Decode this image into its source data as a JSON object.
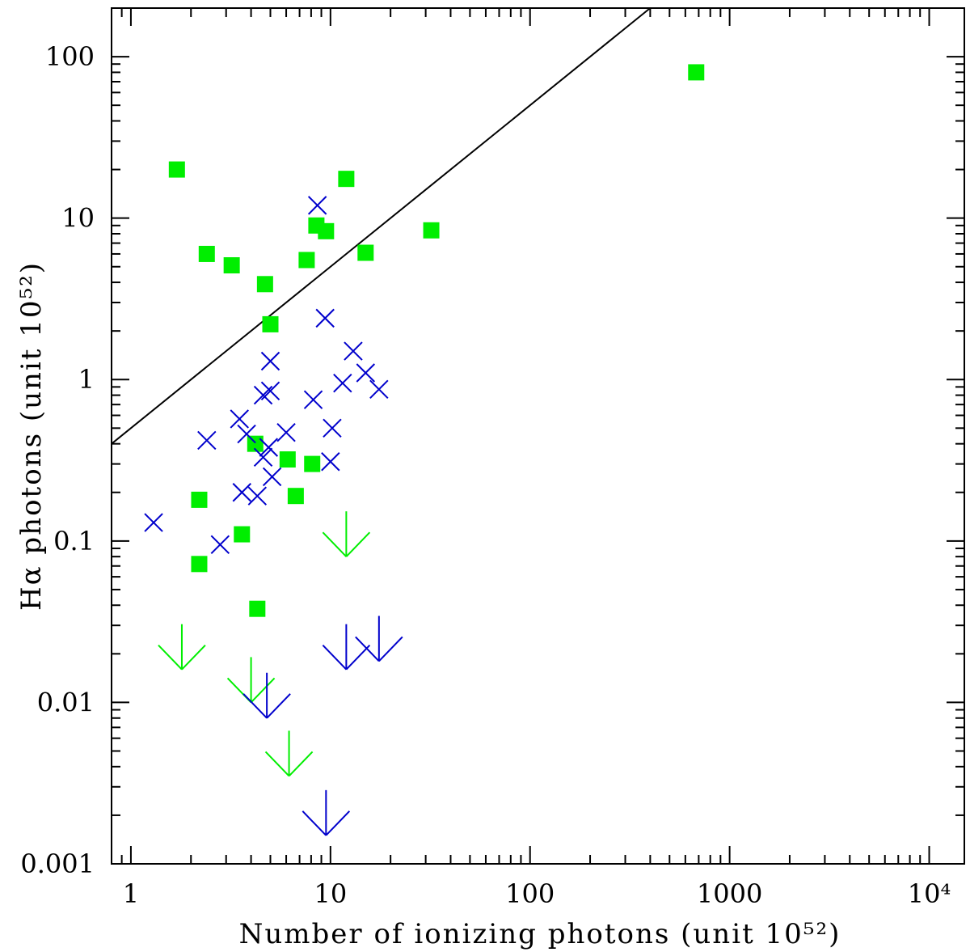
{
  "chart_data": {
    "type": "scatter",
    "title": "",
    "xlabel": "Number of ionizing photons (unit 10⁵²)",
    "ylabel": "Hα  photons (unit 10⁵²)",
    "xscale": "log",
    "yscale": "log",
    "xlim": [
      0.8,
      15000
    ],
    "ylim": [
      0.001,
      200
    ],
    "x_ticks": [
      {
        "value": 1,
        "label": "1"
      },
      {
        "value": 10,
        "label": "10"
      },
      {
        "value": 100,
        "label": "100"
      },
      {
        "value": 1000,
        "label": "1000"
      },
      {
        "value": 10000,
        "label": "10⁴"
      }
    ],
    "y_ticks": [
      {
        "value": 0.001,
        "label": "0.001"
      },
      {
        "value": 0.01,
        "label": "0.01"
      },
      {
        "value": 0.1,
        "label": "0.1"
      },
      {
        "value": 1,
        "label": "1"
      },
      {
        "value": 10,
        "label": "10"
      },
      {
        "value": 100,
        "label": "100"
      }
    ],
    "grid": false,
    "legend": "none",
    "colors": {
      "green": "#00ee00",
      "blue": "#0000cc",
      "line": "#000000"
    },
    "reference_line": {
      "x": [
        0.8,
        400
      ],
      "y": [
        0.4,
        200
      ]
    },
    "series": [
      {
        "marker": "square",
        "color": "#00ee00",
        "points": [
          [
            680,
            80
          ],
          [
            1.7,
            20
          ],
          [
            12,
            17.5
          ],
          [
            8.5,
            9
          ],
          [
            9.5,
            8.3
          ],
          [
            32,
            8.4
          ],
          [
            2.4,
            6
          ],
          [
            3.2,
            5.1
          ],
          [
            15,
            6.1
          ],
          [
            7.6,
            5.5
          ],
          [
            4.7,
            3.9
          ],
          [
            5,
            2.2
          ],
          [
            4.2,
            0.4
          ],
          [
            6.1,
            0.32
          ],
          [
            8.1,
            0.3
          ],
          [
            6.7,
            0.19
          ],
          [
            2.2,
            0.18
          ],
          [
            3.6,
            0.11
          ],
          [
            2.2,
            0.072
          ],
          [
            4.3,
            0.038
          ]
        ]
      },
      {
        "marker": "cross",
        "color": "#0000cc",
        "points": [
          [
            8.6,
            12
          ],
          [
            9.4,
            2.4
          ],
          [
            13,
            1.5
          ],
          [
            5,
            1.3
          ],
          [
            15,
            1.1
          ],
          [
            11.5,
            0.95
          ],
          [
            17.5,
            0.87
          ],
          [
            5,
            0.85
          ],
          [
            4.6,
            0.8
          ],
          [
            8.2,
            0.75
          ],
          [
            3.5,
            0.57
          ],
          [
            10.2,
            0.5
          ],
          [
            2.4,
            0.42
          ],
          [
            3.8,
            0.46
          ],
          [
            6,
            0.47
          ],
          [
            4.9,
            0.38
          ],
          [
            4.6,
            0.33
          ],
          [
            10,
            0.31
          ],
          [
            5.1,
            0.25
          ],
          [
            3.6,
            0.2
          ],
          [
            4.3,
            0.19
          ],
          [
            1.3,
            0.13
          ],
          [
            2.8,
            0.095
          ]
        ]
      },
      {
        "marker": "upper-limit",
        "color": "#00ee00",
        "points": [
          [
            12,
            0.08
          ],
          [
            1.8,
            0.016
          ],
          [
            4,
            0.01
          ],
          [
            6.2,
            0.0035
          ]
        ]
      },
      {
        "marker": "upper-limit",
        "color": "#0000cc",
        "points": [
          [
            12,
            0.016
          ],
          [
            17.5,
            0.018
          ],
          [
            4.8,
            0.008
          ],
          [
            9.5,
            0.0015
          ]
        ]
      }
    ]
  }
}
